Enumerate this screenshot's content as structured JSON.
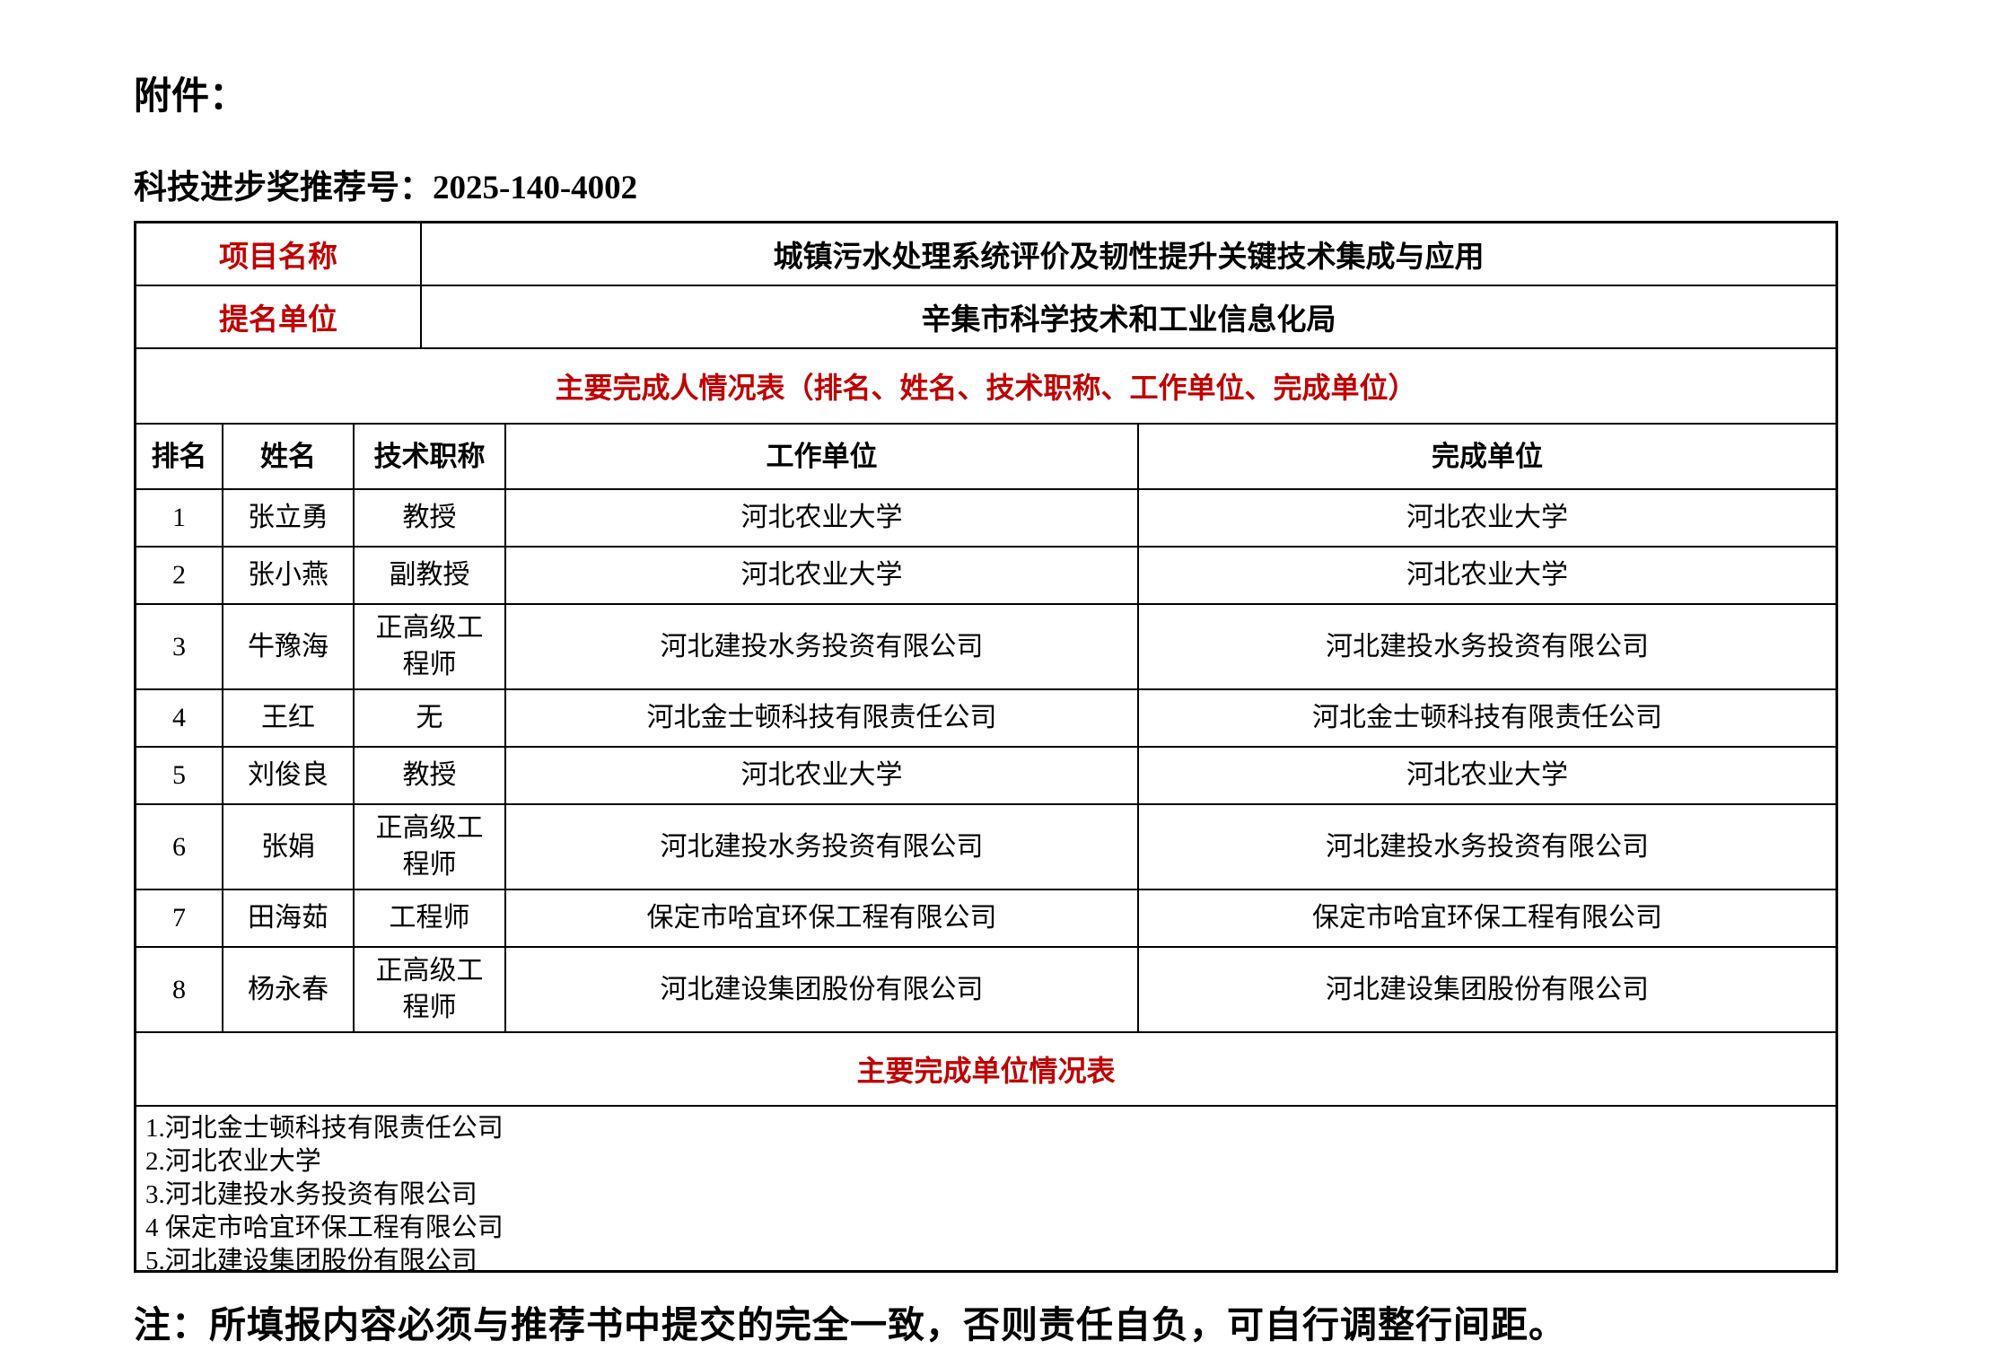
{
  "colors": {
    "accent_red": "#c00000",
    "border": "#000000",
    "background": "#ffffff"
  },
  "page": {
    "attachment_label": "附件：",
    "recommendation_label": "科技进步奖推荐号：",
    "recommendation_number": "2025-140-4002",
    "note": "注：所填报内容必须与推荐书中提交的完全一致，否则责任自负，可自行调整行间距。"
  },
  "info_table": {
    "rows": [
      {
        "label": "项目名称",
        "value": "城镇污水处理系统评价及韧性提升关键技术集成与应用"
      },
      {
        "label": "提名单位",
        "value": "辛集市科学技术和工业信息化局"
      }
    ]
  },
  "completers_table": {
    "title": "主要完成人情况表（排名、姓名、技术职称、工作单位、完成单位）",
    "headers": [
      "排名",
      "姓名",
      "技术职称",
      "工作单位",
      "完成单位"
    ],
    "rows": [
      {
        "rank": "1",
        "name": "张立勇",
        "tech_title": "教授",
        "work_unit": "河北农业大学",
        "completion_unit": "河北农业大学"
      },
      {
        "rank": "2",
        "name": "张小燕",
        "tech_title": "副教授",
        "work_unit": "河北农业大学",
        "completion_unit": "河北农业大学"
      },
      {
        "rank": "3",
        "name": "牛豫海",
        "tech_title": "正高级工程师",
        "work_unit": "河北建投水务投资有限公司",
        "completion_unit": "河北建投水务投资有限公司"
      },
      {
        "rank": "4",
        "name": "王红",
        "tech_title": "无",
        "work_unit": "河北金士顿科技有限责任公司",
        "completion_unit": "河北金士顿科技有限责任公司"
      },
      {
        "rank": "5",
        "name": "刘俊良",
        "tech_title": "教授",
        "work_unit": "河北农业大学",
        "completion_unit": "河北农业大学"
      },
      {
        "rank": "6",
        "name": "张娟",
        "tech_title": "正高级工程师",
        "work_unit": "河北建投水务投资有限公司",
        "completion_unit": "河北建投水务投资有限公司"
      },
      {
        "rank": "7",
        "name": "田海茹",
        "tech_title": "工程师",
        "work_unit": "保定市哈宜环保工程有限公司",
        "completion_unit": "保定市哈宜环保工程有限公司"
      },
      {
        "rank": "8",
        "name": "杨永春",
        "tech_title": "正高级工程师",
        "work_unit": "河北建设集团股份有限公司",
        "completion_unit": "河北建设集团股份有限公司"
      }
    ]
  },
  "units_table": {
    "title": "主要完成单位情况表",
    "items": [
      "1.河北金士顿科技有限责任公司",
      "2.河北农业大学",
      "3.河北建投水务投资有限公司",
      "4 保定市哈宜环保工程有限公司",
      "5.河北建设集团股份有限公司"
    ]
  }
}
